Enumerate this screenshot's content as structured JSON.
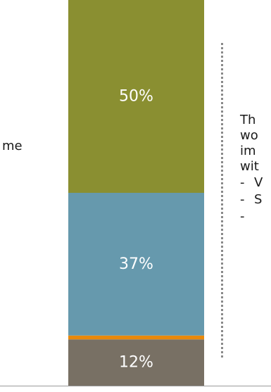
{
  "left_text": "me",
  "side_text": {
    "lines": [
      "Th",
      "wo",
      "im",
      "wit"
    ],
    "list_items": [
      "V",
      "S",
      ""
    ]
  },
  "chart_data": {
    "type": "bar",
    "stacked": true,
    "orientation": "vertical",
    "categories": [
      ""
    ],
    "ylim": [
      0,
      100
    ],
    "series": [
      {
        "values": [
          12
        ],
        "label": "12%",
        "color": "#787064"
      },
      {
        "values": [
          1
        ],
        "label": "",
        "color": "#E8890C"
      },
      {
        "values": [
          37
        ],
        "label": "37%",
        "color": "#6699AD"
      },
      {
        "values": [
          50
        ],
        "label": "50%",
        "color": "#8A8F31"
      }
    ]
  }
}
